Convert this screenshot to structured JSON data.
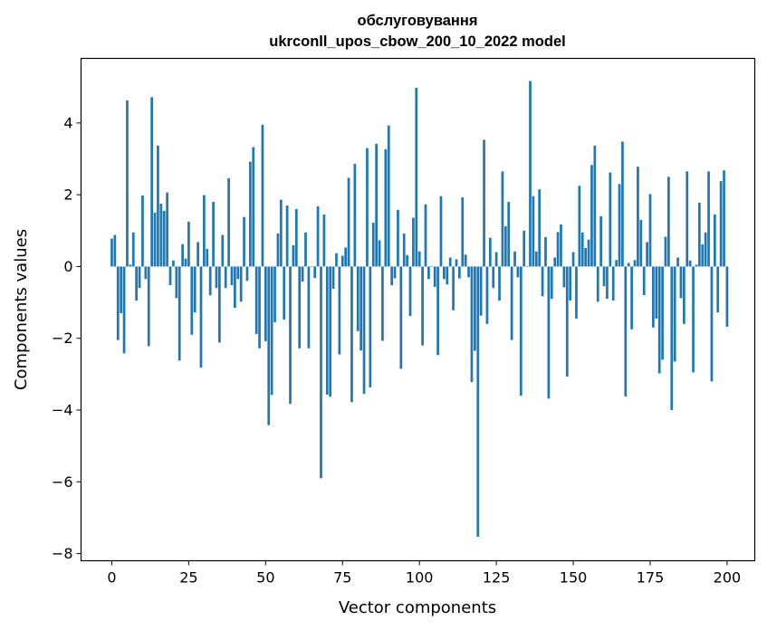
{
  "chart_data": {
    "type": "bar",
    "title_line1": "обслуговування",
    "title_line2": "ukrconll_upos_cbow_200_10_2022 model",
    "xlabel": "Vector components",
    "ylabel": "Components values",
    "xlim": [
      -10,
      209
    ],
    "ylim": [
      -8.2,
      5.8
    ],
    "xticks": [
      0,
      25,
      50,
      75,
      100,
      125,
      150,
      175,
      200
    ],
    "yticks": [
      -8,
      -6,
      -4,
      -2,
      0,
      2,
      4
    ],
    "bar_color": "#1f77b4",
    "values": [
      0.78,
      0.88,
      -2.05,
      -1.3,
      -2.42,
      4.63,
      0.05,
      0.95,
      -0.95,
      -0.6,
      1.98,
      -0.35,
      -2.22,
      4.72,
      1.5,
      3.37,
      1.75,
      1.55,
      2.06,
      -0.52,
      0.17,
      -0.88,
      -2.62,
      0.62,
      0.22,
      1.25,
      -1.9,
      -1.28,
      0.68,
      -2.82,
      1.99,
      0.49,
      -0.8,
      1.8,
      -0.6,
      -2.12,
      0.88,
      -0.6,
      2.46,
      -0.52,
      -1.15,
      -0.35,
      -0.98,
      1.38,
      -0.4,
      2.92,
      3.33,
      -1.88,
      -2.28,
      3.95,
      -2.08,
      -4.42,
      -3.58,
      -1.55,
      0.92,
      1.86,
      -1.48,
      1.7,
      -3.83,
      0.59,
      1.6,
      -2.28,
      -0.42,
      0.95,
      -2.28,
      0.0,
      -0.32,
      1.68,
      -5.9,
      1.45,
      -3.57,
      -3.63,
      -0.62,
      0.37,
      -2.45,
      0.3,
      0.53,
      2.47,
      -3.78,
      2.86,
      -1.8,
      -2.34,
      -3.55,
      3.3,
      -3.37,
      1.22,
      3.42,
      0.73,
      -2.07,
      3.27,
      3.93,
      -0.52,
      -0.33,
      1.58,
      -2.85,
      0.92,
      0.32,
      -1.38,
      1.36,
      4.98,
      0.42,
      -2.2,
      1.73,
      -0.35,
      0.0,
      -0.57,
      -2.47,
      1.96,
      -0.35,
      -0.5,
      0.25,
      -1.22,
      0.2,
      -0.33,
      1.93,
      0.33,
      -0.3,
      -3.22,
      -2.35,
      -7.53,
      -1.37,
      3.53,
      -1.6,
      0.8,
      -0.6,
      0.4,
      -0.95,
      2.65,
      1.12,
      1.8,
      -2.05,
      0.42,
      -0.3,
      -3.6,
      1.0,
      0.0,
      5.17,
      1.96,
      0.42,
      2.15,
      -0.83,
      0.82,
      -3.68,
      -0.9,
      0.25,
      0.96,
      1.17,
      -0.58,
      -3.07,
      -0.95,
      0.4,
      -1.45,
      2.25,
      0.95,
      0.52,
      0.75,
      2.83,
      3.37,
      -0.98,
      1.4,
      -0.55,
      -0.9,
      2.62,
      -0.95,
      0.18,
      2.3,
      3.48,
      -3.62,
      0.1,
      -1.75,
      0.18,
      2.78,
      1.3,
      -0.8,
      0.68,
      2.02,
      -1.7,
      -1.45,
      -2.98,
      -2.6,
      0.83,
      2.5,
      -4.0,
      -2.65,
      0.25,
      -0.88,
      -1.6,
      2.65,
      0.17,
      -2.95,
      0.05,
      1.78,
      0.62,
      0.95,
      2.65,
      -3.2,
      1.45,
      -1.28,
      2.38,
      2.68,
      -1.68
    ]
  }
}
